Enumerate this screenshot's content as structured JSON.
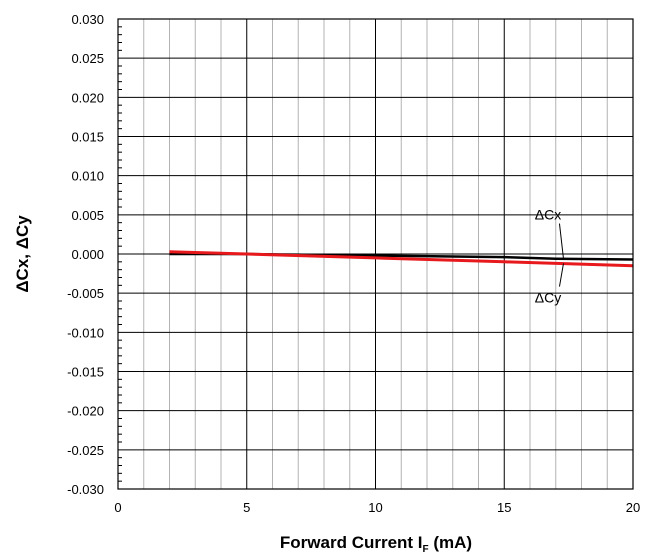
{
  "chart_data": {
    "type": "line",
    "title": "",
    "xlabel_main": "Forward Current I",
    "xlabel_sub": "F",
    "xlabel_suffix": " (mA)",
    "ylabel": "ΔCx, ΔCy",
    "xlim": [
      0,
      20
    ],
    "ylim": [
      -0.03,
      0.03
    ],
    "x_ticks": [
      0,
      5,
      10,
      15,
      20
    ],
    "y_ticks": [
      0.03,
      0.025,
      0.02,
      0.015,
      0.01,
      0.005,
      0.0,
      -0.005,
      -0.01,
      -0.015,
      -0.02,
      -0.025,
      -0.03
    ],
    "y_tick_labels": [
      "0.030",
      "0.025",
      "0.020",
      "0.015",
      "0.010",
      "0.005",
      "0.000",
      "-0.005",
      "-0.010",
      "-0.015",
      "-0.020",
      "-0.025",
      "-0.030"
    ],
    "x_tick_labels": [
      "0",
      "5",
      "10",
      "15",
      "20"
    ],
    "grid": true,
    "series": [
      {
        "name": "ΔCx",
        "color": "#000000",
        "x": [
          2,
          5,
          10,
          15,
          17,
          20
        ],
        "y": [
          0.0,
          0.0,
          -0.0002,
          -0.0004,
          -0.0006,
          -0.0007
        ]
      },
      {
        "name": "ΔCy",
        "color": "#e8191c",
        "x": [
          2,
          5,
          10,
          15,
          20
        ],
        "y": [
          0.0003,
          0.0,
          -0.0005,
          -0.001,
          -0.0015
        ]
      }
    ],
    "annotations": [
      {
        "text": "ΔCx",
        "x": 16.7,
        "y": 0.0044,
        "leader_to_x": 17.3,
        "leader_to_y": -0.0006
      },
      {
        "text": "ΔCy",
        "x": 16.7,
        "y": -0.0062,
        "leader_to_x": 17.3,
        "leader_to_y": -0.0012
      }
    ]
  }
}
